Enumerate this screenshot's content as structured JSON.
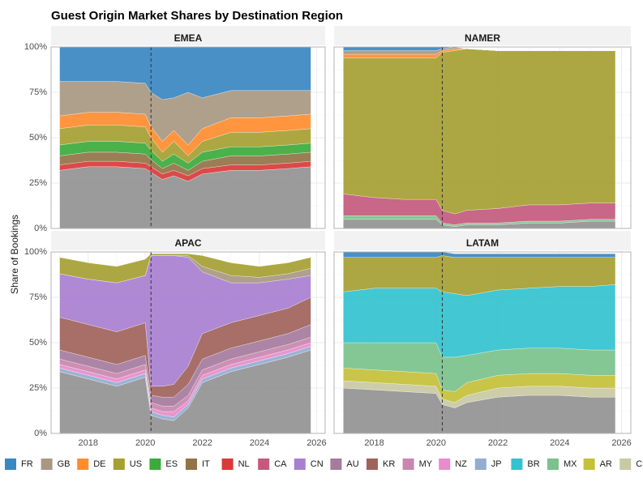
{
  "chart_data": {
    "type": "area",
    "stacked": true,
    "title": "Guest Origin Market Shares by Destination Region",
    "ylabel": "Share of Bookings",
    "xlabel": "",
    "xlim": [
      2016.7,
      2026.3
    ],
    "ylim": [
      0,
      1
    ],
    "x_ticks": [
      2018,
      2020,
      2022,
      2024,
      2026
    ],
    "x_tick_labels": [
      "2018",
      "2020",
      "2022",
      "2024",
      "2026"
    ],
    "y_ticks": [
      0,
      0.25,
      0.5,
      0.75,
      1.0
    ],
    "y_tick_labels": [
      "0%",
      "25%",
      "50%",
      "75%",
      "100%"
    ],
    "reference_line_x": 2020.2,
    "legend_position": "bottom",
    "origins": [
      {
        "code": "FR",
        "color": "#3A87C2"
      },
      {
        "code": "GB",
        "color": "#A89882"
      },
      {
        "code": "DE",
        "color": "#FF8C2E"
      },
      {
        "code": "US",
        "color": "#A5A032"
      },
      {
        "code": "ES",
        "color": "#3CAA3C"
      },
      {
        "code": "IT",
        "color": "#937347"
      },
      {
        "code": "NL",
        "color": "#D93A3A"
      },
      {
        "code": "CA",
        "color": "#C35A7E"
      },
      {
        "code": "CN",
        "color": "#A87FD0"
      },
      {
        "code": "AU",
        "color": "#A57B9E"
      },
      {
        "code": "KR",
        "color": "#A0635A"
      },
      {
        "code": "MY",
        "color": "#C887AE"
      },
      {
        "code": "NZ",
        "color": "#E88CCB"
      },
      {
        "code": "JP",
        "color": "#93ACD1"
      },
      {
        "code": "BR",
        "color": "#33C2CE"
      },
      {
        "code": "MX",
        "color": "#7BC28B"
      },
      {
        "code": "AR",
        "color": "#C4C038"
      },
      {
        "code": "CL",
        "color": "#C9C9A3"
      }
    ],
    "base_color": "#929292",
    "panels": [
      {
        "region": "EMEA",
        "x": [
          2017.0,
          2018.0,
          2019.0,
          2020.0,
          2020.2,
          2020.6,
          2021.0,
          2021.5,
          2022.0,
          2023.0,
          2024.0,
          2025.0,
          2025.8
        ],
        "base": [
          0.32,
          0.34,
          0.34,
          0.33,
          0.31,
          0.27,
          0.29,
          0.26,
          0.3,
          0.32,
          0.32,
          0.33,
          0.34
        ],
        "series": [
          {
            "name": "NL",
            "values": [
              0.03,
              0.03,
              0.03,
              0.03,
              0.03,
              0.03,
              0.03,
              0.03,
              0.03,
              0.03,
              0.03,
              0.03,
              0.03
            ]
          },
          {
            "name": "IT",
            "values": [
              0.05,
              0.05,
              0.05,
              0.05,
              0.04,
              0.03,
              0.04,
              0.03,
              0.04,
              0.05,
              0.05,
              0.05,
              0.05
            ]
          },
          {
            "name": "ES",
            "values": [
              0.06,
              0.06,
              0.06,
              0.06,
              0.05,
              0.04,
              0.05,
              0.04,
              0.05,
              0.05,
              0.05,
              0.05,
              0.05
            ]
          },
          {
            "name": "US",
            "values": [
              0.09,
              0.09,
              0.09,
              0.09,
              0.07,
              0.05,
              0.07,
              0.04,
              0.06,
              0.08,
              0.08,
              0.08,
              0.08
            ]
          },
          {
            "name": "DE",
            "values": [
              0.07,
              0.07,
              0.07,
              0.07,
              0.06,
              0.06,
              0.06,
              0.06,
              0.07,
              0.08,
              0.08,
              0.08,
              0.08
            ]
          },
          {
            "name": "GB",
            "values": [
              0.19,
              0.17,
              0.17,
              0.17,
              0.19,
              0.23,
              0.18,
              0.29,
              0.17,
              0.15,
              0.15,
              0.14,
              0.13
            ]
          },
          {
            "name": "FR",
            "values": [
              0.19,
              0.19,
              0.19,
              0.2,
              0.25,
              0.29,
              0.28,
              0.25,
              0.28,
              0.24,
              0.24,
              0.24,
              0.24
            ]
          }
        ]
      },
      {
        "region": "NAMER",
        "x": [
          2017.0,
          2018.0,
          2019.0,
          2020.0,
          2020.2,
          2020.6,
          2021.0,
          2022.0,
          2023.0,
          2024.0,
          2025.0,
          2025.8
        ],
        "base": [
          0.05,
          0.05,
          0.05,
          0.05,
          0.02,
          0.01,
          0.02,
          0.02,
          0.03,
          0.03,
          0.04,
          0.04
        ],
        "series": [
          {
            "name": "MX",
            "values": [
              0.02,
              0.02,
              0.02,
              0.02,
              0.01,
              0.01,
              0.01,
              0.01,
              0.01,
              0.01,
              0.01,
              0.01
            ]
          },
          {
            "name": "CA",
            "values": [
              0.12,
              0.1,
              0.09,
              0.09,
              0.07,
              0.06,
              0.07,
              0.08,
              0.09,
              0.09,
              0.09,
              0.09
            ]
          },
          {
            "name": "US",
            "values": [
              0.75,
              0.77,
              0.78,
              0.78,
              0.87,
              0.9,
              0.89,
              0.87,
              0.85,
              0.85,
              0.84,
              0.84
            ]
          },
          {
            "name": "DE",
            "values": [
              0.02,
              0.02,
              0.02,
              0.02,
              0.01,
              0.01,
              0.0,
              0.0,
              0.0,
              0.0,
              0.0,
              0.0
            ]
          },
          {
            "name": "GB",
            "values": [
              0.02,
              0.02,
              0.02,
              0.02,
              0.01,
              0.01,
              0.0,
              0.0,
              0.0,
              0.0,
              0.0,
              0.0
            ]
          },
          {
            "name": "FR",
            "values": [
              0.02,
              0.02,
              0.02,
              0.02,
              0.01,
              0.0,
              0.0,
              0.0,
              0.0,
              0.0,
              0.0,
              0.0
            ]
          }
        ]
      },
      {
        "region": "APAC",
        "x": [
          2017.0,
          2018.0,
          2019.0,
          2020.0,
          2020.2,
          2020.6,
          2021.0,
          2021.5,
          2022.0,
          2023.0,
          2024.0,
          2025.0,
          2025.8
        ],
        "base": [
          0.34,
          0.3,
          0.26,
          0.31,
          0.1,
          0.08,
          0.07,
          0.14,
          0.28,
          0.34,
          0.38,
          0.42,
          0.46
        ],
        "series": [
          {
            "name": "JP",
            "values": [
              0.02,
              0.02,
              0.02,
              0.02,
              0.02,
              0.02,
              0.02,
              0.02,
              0.02,
              0.02,
              0.02,
              0.02,
              0.02
            ]
          },
          {
            "name": "NZ",
            "values": [
              0.02,
              0.02,
              0.02,
              0.02,
              0.02,
              0.02,
              0.03,
              0.02,
              0.02,
              0.02,
              0.02,
              0.02,
              0.02
            ]
          },
          {
            "name": "MY",
            "values": [
              0.03,
              0.03,
              0.03,
              0.03,
              0.03,
              0.03,
              0.03,
              0.03,
              0.03,
              0.03,
              0.03,
              0.03,
              0.03
            ]
          },
          {
            "name": "AU",
            "values": [
              0.05,
              0.05,
              0.05,
              0.05,
              0.04,
              0.05,
              0.05,
              0.06,
              0.06,
              0.06,
              0.06,
              0.06,
              0.07
            ]
          },
          {
            "name": "KR",
            "values": [
              0.18,
              0.18,
              0.18,
              0.18,
              0.05,
              0.06,
              0.07,
              0.1,
              0.14,
              0.14,
              0.14,
              0.14,
              0.15
            ]
          },
          {
            "name": "CN",
            "values": [
              0.24,
              0.25,
              0.27,
              0.26,
              0.72,
              0.72,
              0.71,
              0.6,
              0.34,
              0.22,
              0.18,
              0.16,
              0.12
            ]
          },
          {
            "name": "GB",
            "values": [
              0.0,
              0.0,
              0.0,
              0.0,
              0.0,
              0.0,
              0.0,
              0.01,
              0.03,
              0.04,
              0.03,
              0.03,
              0.04
            ]
          },
          {
            "name": "US",
            "values": [
              0.09,
              0.09,
              0.09,
              0.09,
              0.01,
              0.01,
              0.01,
              0.01,
              0.06,
              0.07,
              0.06,
              0.06,
              0.06
            ]
          }
        ]
      },
      {
        "region": "LATAM",
        "x": [
          2017.0,
          2018.0,
          2019.0,
          2020.0,
          2020.2,
          2020.6,
          2021.0,
          2022.0,
          2023.0,
          2024.0,
          2025.0,
          2025.8
        ],
        "base": [
          0.25,
          0.24,
          0.23,
          0.22,
          0.16,
          0.14,
          0.17,
          0.2,
          0.21,
          0.21,
          0.2,
          0.2
        ],
        "series": [
          {
            "name": "CL",
            "values": [
              0.04,
              0.04,
              0.04,
              0.04,
              0.03,
              0.03,
              0.04,
              0.05,
              0.05,
              0.05,
              0.05,
              0.05
            ]
          },
          {
            "name": "AR",
            "values": [
              0.07,
              0.07,
              0.07,
              0.07,
              0.05,
              0.06,
              0.07,
              0.07,
              0.07,
              0.07,
              0.07,
              0.07
            ]
          },
          {
            "name": "MX",
            "values": [
              0.14,
              0.15,
              0.16,
              0.17,
              0.18,
              0.19,
              0.15,
              0.14,
              0.14,
              0.14,
              0.14,
              0.14
            ]
          },
          {
            "name": "BR",
            "values": [
              0.28,
              0.3,
              0.3,
              0.3,
              0.36,
              0.35,
              0.33,
              0.33,
              0.33,
              0.34,
              0.35,
              0.36
            ]
          },
          {
            "name": "US",
            "values": [
              0.19,
              0.17,
              0.17,
              0.17,
              0.2,
              0.2,
              0.21,
              0.18,
              0.17,
              0.16,
              0.16,
              0.15
            ]
          },
          {
            "name": "FR",
            "values": [
              0.03,
              0.03,
              0.03,
              0.03,
              0.02,
              0.02,
              0.02,
              0.02,
              0.02,
              0.02,
              0.02,
              0.02
            ]
          }
        ]
      }
    ]
  }
}
